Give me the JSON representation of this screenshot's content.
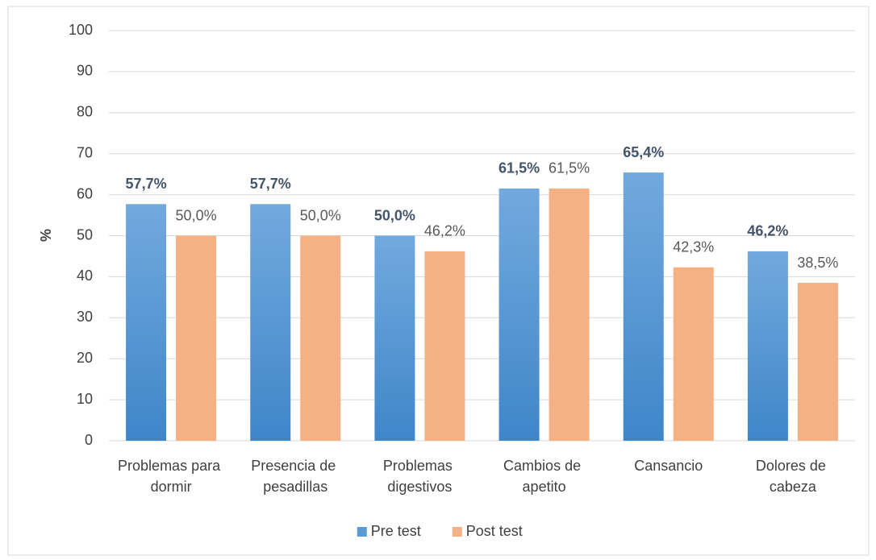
{
  "chart_data": {
    "type": "bar",
    "y_label": "%",
    "categories": [
      "Problemas para dormir",
      "Presencia de pesadillas",
      "Problemas digestivos",
      "Cambios de apetito",
      "Cansancio",
      "Dolores de cabeza"
    ],
    "series": [
      {
        "name": "Pre test",
        "color": "#5b9bd5",
        "values": [
          57.7,
          57.7,
          50.0,
          61.5,
          65.4,
          46.2
        ],
        "value_labels": [
          "57,7%",
          "57,7%",
          "50,0%",
          "61,5%",
          "65,4%",
          "46,2%"
        ]
      },
      {
        "name": "Post test",
        "color": "#f4b183",
        "values": [
          50.0,
          50.0,
          46.2,
          61.5,
          42.3,
          38.5
        ],
        "value_labels": [
          "50,0%",
          "50,0%",
          "46,2%",
          "61,5%",
          "42,3%",
          "38,5%"
        ]
      }
    ],
    "ylim": [
      0,
      100
    ],
    "yticks": [
      0,
      10,
      20,
      30,
      40,
      50,
      60,
      70,
      80,
      90,
      100
    ],
    "grid": true,
    "legend": "bottom"
  }
}
